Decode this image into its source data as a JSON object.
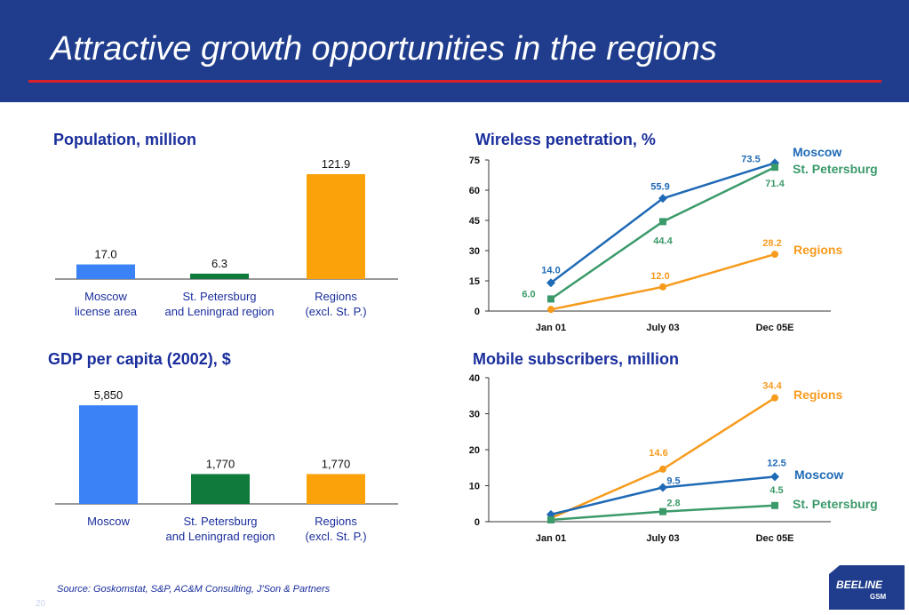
{
  "header": {
    "title": "Attractive growth opportunities in the regions"
  },
  "footer": {
    "source": "Source:  Goskomstat, S&P, AC&M Consulting, J'Son & Partners",
    "page_number": "20"
  },
  "logo": {
    "line1": "BEELINE",
    "line2": "GSM"
  },
  "colors": {
    "blue": "#3b82f6",
    "green": "#0f7a3a",
    "orange": "#fba10a",
    "line_blue": "#1f6ab6",
    "line_green": "#3b9a6a",
    "line_orange": "#f79b1d",
    "header_bg": "#1f3d8c",
    "title_text": "#1a2e9c"
  },
  "chart_data": [
    {
      "id": "population",
      "type": "bar",
      "title": "Population, million",
      "categories": [
        [
          "Moscow",
          "license area"
        ],
        [
          "St. Petersburg",
          "and Leningrad region"
        ],
        [
          "Regions",
          "(excl. St. P.)"
        ]
      ],
      "values": [
        17.0,
        6.3,
        121.9
      ],
      "value_labels": [
        "17.0",
        "6.3",
        "121.9"
      ],
      "colors": [
        "#3b82f6",
        "#0f7a3a",
        "#fba10a"
      ],
      "ylim": [
        0,
        121.9
      ]
    },
    {
      "id": "gdp",
      "type": "bar",
      "title": "GDP per capita (2002), $",
      "categories": [
        [
          "Moscow"
        ],
        [
          "St. Petersburg",
          "and Leningrad region"
        ],
        [
          "Regions",
          "(excl. St. P.)"
        ]
      ],
      "values": [
        5850,
        1770,
        1770
      ],
      "value_labels": [
        "5,850",
        "1,770",
        "1,770"
      ],
      "colors": [
        "#3b82f6",
        "#0f7a3a",
        "#fba10a"
      ],
      "ylim": [
        0,
        5850
      ]
    },
    {
      "id": "penetration",
      "type": "line",
      "title": "Wireless penetration, %",
      "x": [
        "Jan 01",
        "July 03",
        "Dec 05E"
      ],
      "ylim": [
        0,
        75
      ],
      "yticks": [
        0,
        15,
        30,
        45,
        60,
        75
      ],
      "series": [
        {
          "name": "Moscow",
          "values": [
            14.0,
            55.9,
            73.5
          ],
          "labels": [
            "14.0",
            "55.9",
            "73.5"
          ],
          "color": "#1f6ab6",
          "marker": "diamond"
        },
        {
          "name": "St. Petersburg",
          "values": [
            6.0,
            44.4,
            71.4
          ],
          "labels": [
            "6.0",
            "44.4",
            "71.4"
          ],
          "color": "#3b9a6a",
          "marker": "square"
        },
        {
          "name": "Regions",
          "values": [
            0.8,
            12.0,
            28.2
          ],
          "labels": [
            "",
            "12.0",
            "28.2"
          ],
          "color": "#f79b1d",
          "marker": "circle"
        }
      ]
    },
    {
      "id": "subscribers",
      "type": "line",
      "title": "Mobile subscribers, million",
      "x": [
        "Jan 01",
        "July 03",
        "Dec 05E"
      ],
      "ylim": [
        0,
        40
      ],
      "yticks": [
        0,
        10,
        20,
        30,
        40
      ],
      "series": [
        {
          "name": "Regions",
          "values": [
            1.0,
            14.6,
            34.4
          ],
          "labels": [
            "",
            "14.6",
            "34.4"
          ],
          "color": "#f79b1d",
          "marker": "circle"
        },
        {
          "name": "Moscow",
          "values": [
            2.0,
            9.5,
            12.5
          ],
          "labels": [
            "",
            "9.5",
            "12.5"
          ],
          "color": "#1f6ab6",
          "marker": "diamond"
        },
        {
          "name": "St. Petersburg",
          "values": [
            0.5,
            2.8,
            4.5
          ],
          "labels": [
            "",
            "2.8",
            "4.5"
          ],
          "color": "#3b9a6a",
          "marker": "square"
        }
      ]
    }
  ]
}
